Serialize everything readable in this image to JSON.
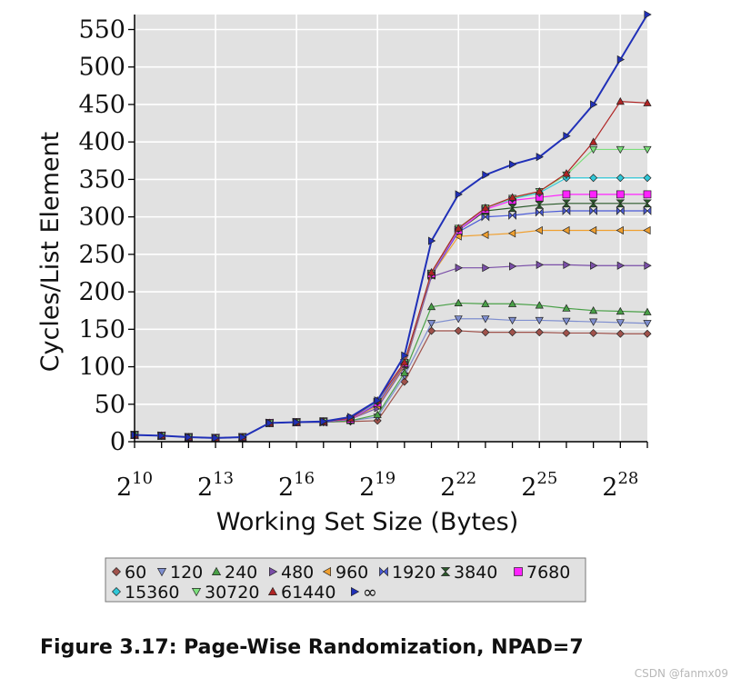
{
  "chart_data": {
    "type": "line",
    "title": "",
    "xlabel": "Working Set Size (Bytes)",
    "ylabel": "Cycles/List Element",
    "x_exponents": [
      10,
      11,
      12,
      13,
      14,
      15,
      16,
      17,
      18,
      19,
      20,
      21,
      22,
      23,
      24,
      25,
      26,
      27,
      28,
      29
    ],
    "x_tick_base": "2",
    "x_tick_exponents": [
      "10",
      "13",
      "16",
      "19",
      "22",
      "25",
      "28"
    ],
    "y_ticks": [
      0,
      50,
      100,
      150,
      200,
      250,
      300,
      350,
      400,
      450,
      500,
      550
    ],
    "ylim": [
      0,
      570
    ],
    "grid": true,
    "legend_placement": "bottom",
    "series": [
      {
        "name": "60",
        "color": "#a0524b",
        "marker": "diamond",
        "values": [
          9,
          8,
          6,
          5,
          6,
          25,
          26,
          26,
          27,
          28,
          80,
          148,
          148,
          146,
          146,
          146,
          145,
          145,
          144,
          144
        ]
      },
      {
        "name": "120",
        "color": "#7f8fd0",
        "marker": "tri-down",
        "values": [
          9,
          8,
          6,
          5,
          6,
          25,
          26,
          26,
          28,
          33,
          88,
          158,
          164,
          164,
          162,
          162,
          161,
          160,
          159,
          158
        ]
      },
      {
        "name": "240",
        "color": "#49a047",
        "marker": "tri-up",
        "values": [
          9,
          8,
          6,
          5,
          6,
          25,
          26,
          26,
          28,
          36,
          92,
          180,
          185,
          184,
          184,
          182,
          178,
          175,
          174,
          173
        ]
      },
      {
        "name": "480",
        "color": "#7a4ea8",
        "marker": "tri-right",
        "values": [
          9,
          8,
          6,
          5,
          6,
          25,
          26,
          26,
          30,
          45,
          100,
          220,
          232,
          232,
          234,
          236,
          236,
          235,
          235,
          235
        ]
      },
      {
        "name": "960",
        "color": "#f0a030",
        "marker": "tri-left",
        "values": [
          9,
          8,
          6,
          5,
          6,
          25,
          26,
          26,
          30,
          48,
          102,
          222,
          274,
          276,
          278,
          282,
          282,
          282,
          282,
          282
        ]
      },
      {
        "name": "1920",
        "color": "#4a5ad8",
        "marker": "bowtie",
        "values": [
          9,
          8,
          6,
          5,
          6,
          25,
          26,
          26,
          30,
          50,
          104,
          222,
          280,
          300,
          302,
          306,
          308,
          308,
          308,
          308
        ]
      },
      {
        "name": "3840",
        "color": "#2a5a2a",
        "marker": "hourglass",
        "values": [
          9,
          8,
          6,
          5,
          6,
          25,
          26,
          27,
          30,
          52,
          104,
          224,
          282,
          308,
          312,
          316,
          318,
          318,
          318,
          318
        ]
      },
      {
        "name": "7680",
        "color": "#ff22ff",
        "marker": "square",
        "values": [
          9,
          8,
          6,
          5,
          6,
          25,
          26,
          27,
          30,
          52,
          105,
          224,
          282,
          310,
          322,
          326,
          330,
          330,
          330,
          330
        ]
      },
      {
        "name": "15360",
        "color": "#30c8d8",
        "marker": "diamond",
        "values": [
          9,
          8,
          6,
          5,
          6,
          25,
          26,
          27,
          31,
          53,
          106,
          225,
          284,
          312,
          324,
          332,
          352,
          352,
          352,
          352
        ]
      },
      {
        "name": "30720",
        "color": "#7ce07c",
        "marker": "tri-down",
        "values": [
          9,
          8,
          6,
          5,
          6,
          25,
          26,
          27,
          31,
          54,
          106,
          225,
          285,
          312,
          325,
          334,
          356,
          390,
          390,
          390
        ]
      },
      {
        "name": "61440",
        "color": "#b02424",
        "marker": "tri-up",
        "values": [
          9,
          8,
          6,
          5,
          6,
          25,
          26,
          27,
          31,
          55,
          106,
          226,
          285,
          312,
          326,
          334,
          358,
          400,
          454,
          452
        ]
      },
      {
        "name": "∞",
        "color": "#2030b8",
        "marker": "tri-right",
        "values": [
          9,
          8,
          6,
          5,
          6,
          25,
          26,
          27,
          33,
          55,
          115,
          268,
          330,
          356,
          370,
          380,
          408,
          450,
          510,
          570
        ]
      }
    ]
  },
  "caption": "Figure 3.17: Page-Wise Randomization, NPAD=7",
  "watermark": "CSDN @fanmx09"
}
